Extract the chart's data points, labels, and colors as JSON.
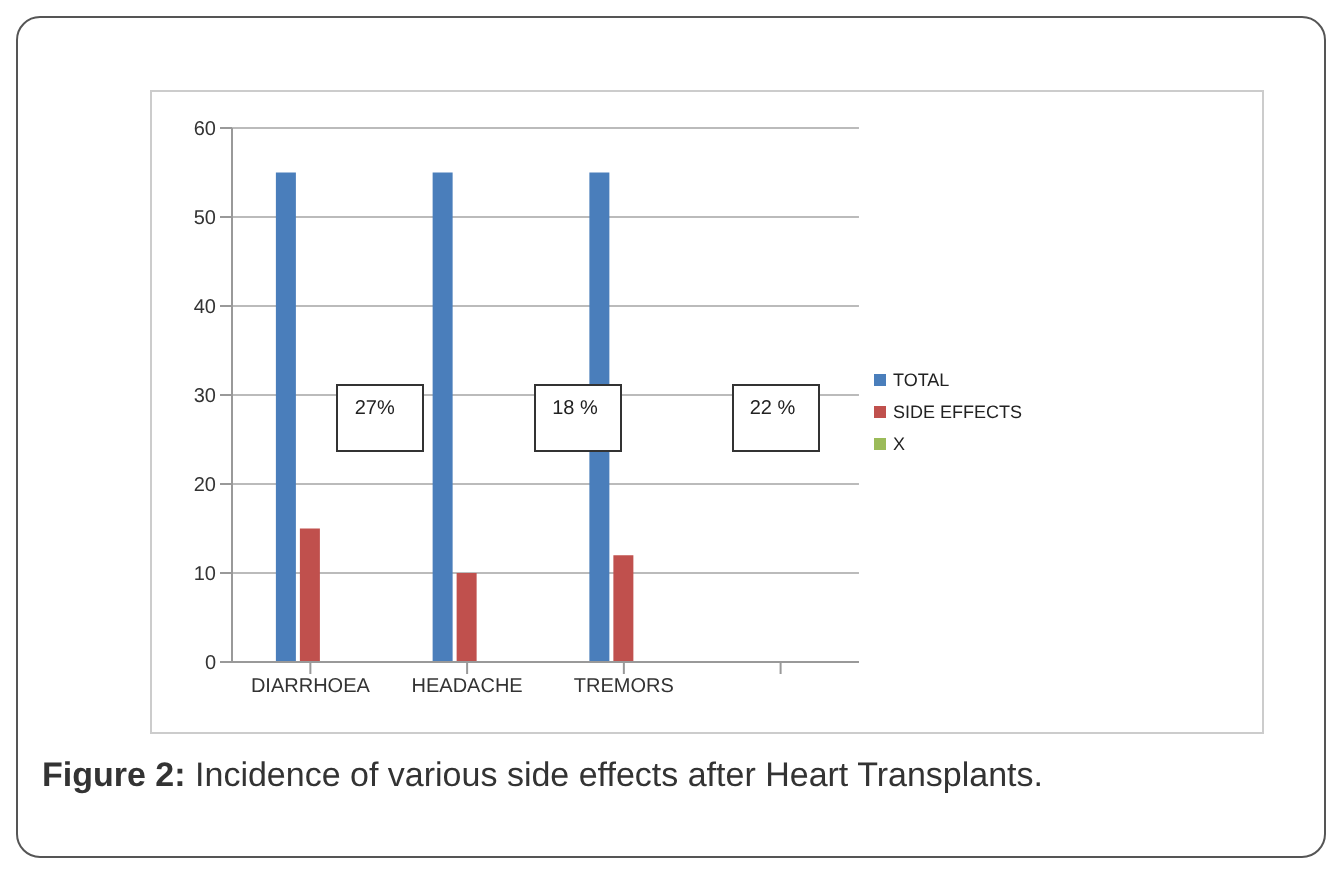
{
  "chart_data": {
    "type": "bar",
    "categories": [
      "DIARRHOEA",
      "HEADACHE",
      "TREMORS",
      null
    ],
    "series": [
      {
        "name": "TOTAL",
        "color": "#4a7ebb",
        "values": [
          55,
          55,
          55,
          null
        ]
      },
      {
        "name": "SIDE EFFECTS",
        "color": "#c0504d",
        "values": [
          15,
          10,
          12,
          null
        ]
      },
      {
        "name": "X",
        "color": "#9bbb59",
        "values": [
          null,
          null,
          null,
          null
        ]
      }
    ],
    "ylim": [
      0,
      60
    ],
    "yticks": [
      0,
      10,
      20,
      30,
      40,
      50,
      60
    ],
    "grid": "y",
    "legend": "right",
    "annotations": [
      "27%",
      "18 %",
      "22 %",
      "Figure 2: Incidence of various side effects after Heart Transplants."
    ]
  }
}
